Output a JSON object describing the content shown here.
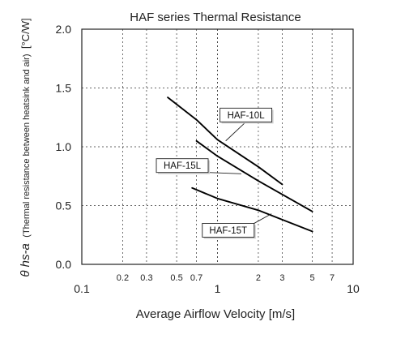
{
  "chart_data": {
    "type": "line",
    "title": "HAF series Thermal Resistance",
    "xlabel": "Average Airflow Velocity [m/s]",
    "ylabel": "θ hs-a (Thermal resistance between heatsink and air) [°C/W]",
    "ylabel_symbol": "θ hs-a",
    "ylabel_paren": "(Thermal resistance between heatsink and air)",
    "ylabel_unit": "[°C/W]",
    "x_scale": "log",
    "xlim": [
      0.1,
      10
    ],
    "ylim": [
      0.0,
      2.0
    ],
    "grid": true,
    "x_major_ticks": [
      {
        "value": 0.1,
        "label": "0.1"
      },
      {
        "value": 1,
        "label": "1"
      },
      {
        "value": 10,
        "label": "10"
      }
    ],
    "x_minor_ticks": [
      {
        "value": 0.2,
        "label": "0.2"
      },
      {
        "value": 0.3,
        "label": "0.3"
      },
      {
        "value": 0.5,
        "label": "0.5"
      },
      {
        "value": 0.7,
        "label": "0.7"
      },
      {
        "value": 2,
        "label": "2"
      },
      {
        "value": 3,
        "label": "3"
      },
      {
        "value": 5,
        "label": "5"
      },
      {
        "value": 7,
        "label": "7"
      }
    ],
    "y_ticks": [
      {
        "value": 0.0,
        "label": "0.0"
      },
      {
        "value": 0.5,
        "label": "0.5"
      },
      {
        "value": 1.0,
        "label": "1.0"
      },
      {
        "value": 1.5,
        "label": "1.5"
      },
      {
        "value": 2.0,
        "label": "2.0"
      }
    ],
    "series": [
      {
        "name": "HAF-10L",
        "points": [
          [
            0.43,
            1.42
          ],
          [
            0.7,
            1.23
          ],
          [
            1.0,
            1.06
          ],
          [
            2.0,
            0.83
          ],
          [
            3.0,
            0.68
          ]
        ],
        "label_at": [
          1.62,
          1.27
        ],
        "pointer_to": [
          1.15,
          1.05
        ]
      },
      {
        "name": "HAF-15L",
        "points": [
          [
            0.7,
            1.05
          ],
          [
            1.0,
            0.92
          ],
          [
            2.0,
            0.71
          ],
          [
            5.0,
            0.45
          ]
        ],
        "label_at": [
          0.55,
          0.84
        ],
        "pointer_to": [
          1.5,
          0.77
        ]
      },
      {
        "name": "HAF-15T",
        "points": [
          [
            0.65,
            0.65
          ],
          [
            1.0,
            0.56
          ],
          [
            2.0,
            0.46
          ],
          [
            3.0,
            0.38
          ],
          [
            5.0,
            0.28
          ]
        ],
        "label_at": [
          1.2,
          0.29
        ],
        "pointer_to": [
          2.5,
          0.43
        ]
      }
    ]
  }
}
